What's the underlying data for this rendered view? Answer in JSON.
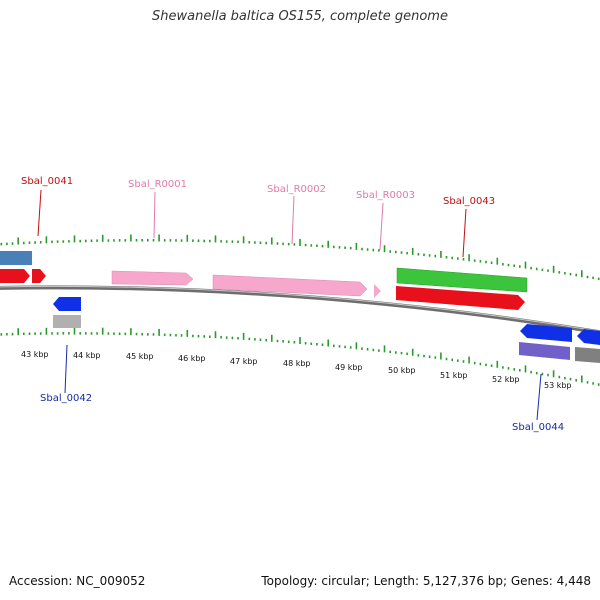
{
  "title": "Shewanella baltica OS155, complete genome",
  "footer": {
    "accession": "Accession: NC_009052",
    "summary": "Topology: circular; Length: 5,127,376 bp; Genes: 4,448"
  },
  "colors": {
    "cds_forward": "#e8101a",
    "cds_reverse": "#1030e8",
    "rna": "#f7a6cc",
    "gene_green": "#3cc43c",
    "gene_gray": "#b0b0b0",
    "gene_purple": "#7060c8",
    "gene_steelblue": "#4a80b8",
    "tick": "#2a9a2a",
    "genome_line": "#888888",
    "label_red": "#c01010",
    "label_pink": "#e07aa8",
    "label_blue": "#1a2aa8"
  },
  "scale_labels": [
    "43 kbp",
    "44 kbp",
    "45 kbp",
    "46 kbp",
    "47 kbp",
    "48 kbp",
    "49 kbp",
    "50 kbp",
    "51 kbp",
    "52 kbp",
    "53 kbp"
  ],
  "gene_labels": {
    "sbal_0041": "Sbal_0041",
    "sbal_r0001": "Sbal_R0001",
    "sbal_r0002": "Sbal_R0002",
    "sbal_r0003": "Sbal_R0003",
    "sbal_0043": "Sbal_0043",
    "sbal_0042": "Sbal_0042",
    "sbal_0044": "Sbal_0044"
  }
}
